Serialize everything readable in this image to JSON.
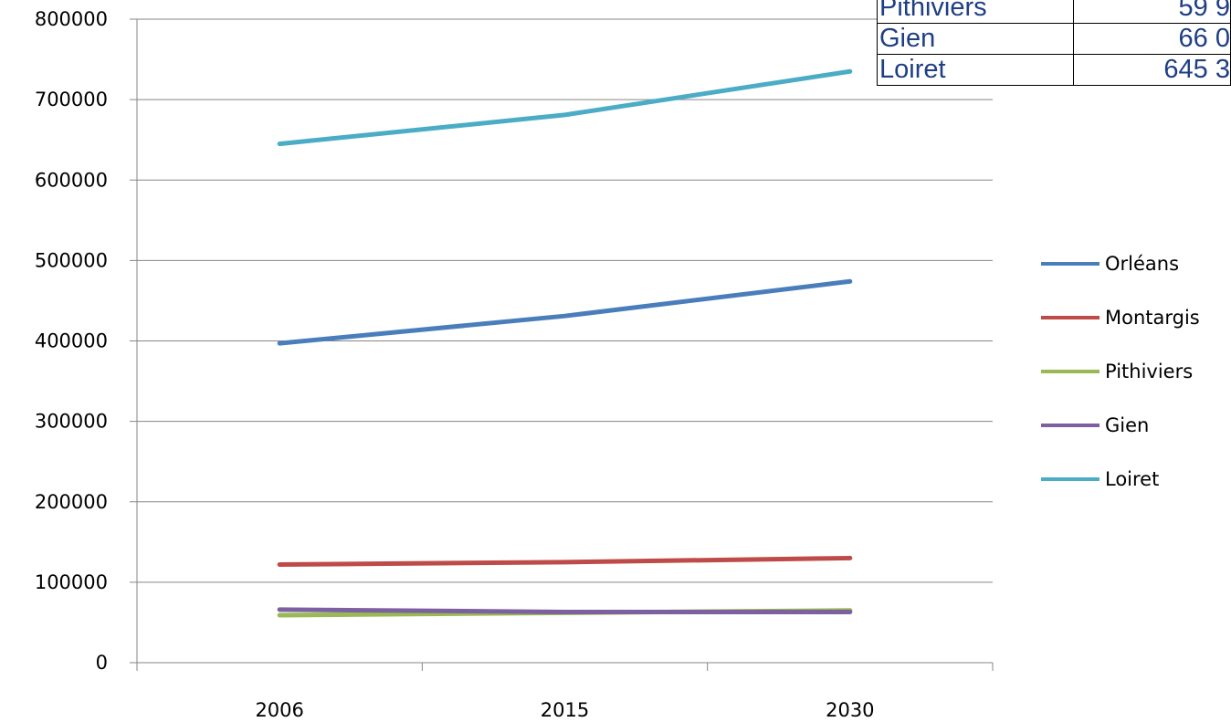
{
  "chart_data": {
    "type": "line",
    "categories": [
      "2006",
      "2015",
      "2030"
    ],
    "ylim": [
      0,
      800000
    ],
    "yticks": [
      "0",
      "100000",
      "200000",
      "300000",
      "400000",
      "500000",
      "600000",
      "700000",
      "800000"
    ],
    "grid": true,
    "legend_position": "right",
    "series": [
      {
        "name": "Orléans",
        "color": "#4a7ebb",
        "values": [
          397000,
          431000,
          474000
        ]
      },
      {
        "name": "Montargis",
        "color": "#be4b48",
        "values": [
          122000,
          125000,
          130000
        ]
      },
      {
        "name": "Pithiviers",
        "color": "#98b954",
        "values": [
          59000,
          62000,
          65000
        ]
      },
      {
        "name": "Gien",
        "color": "#7d60a0",
        "values": [
          66000,
          63000,
          63000
        ]
      },
      {
        "name": "Loiret",
        "color": "#4bacc6",
        "values": [
          645000,
          681000,
          735000
        ]
      }
    ]
  },
  "table": {
    "rows": [
      {
        "name": "Pithiviers",
        "value": "59 9"
      },
      {
        "name": "Gien",
        "value": "66 0"
      },
      {
        "name": "Loiret",
        "value": "645 3"
      }
    ]
  }
}
